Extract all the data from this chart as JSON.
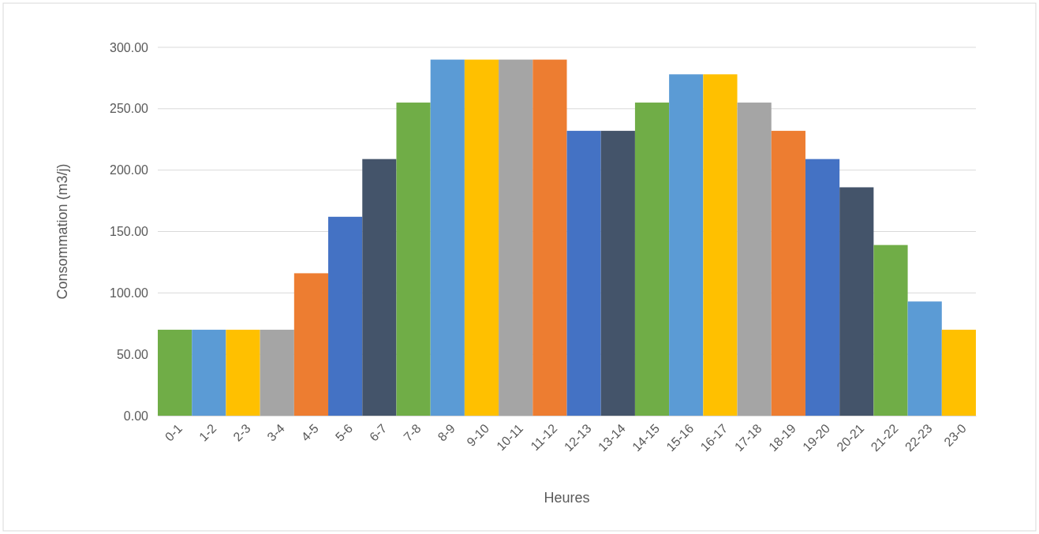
{
  "chart_data": {
    "type": "bar",
    "xlabel": "Heures",
    "ylabel": "Consommation (m3/j)",
    "categories": [
      "0-1",
      "1-2",
      "2-3",
      "3-4",
      "4-5",
      "5-6",
      "6-7",
      "7-8",
      "8-9",
      "9-10",
      "10-11",
      "11-12",
      "12-13",
      "13-14",
      "14-15",
      "15-16",
      "16-17",
      "17-18",
      "18-19",
      "19-20",
      "20-21",
      "21-22",
      "22-23",
      "23-0"
    ],
    "values": [
      70,
      70,
      70,
      70,
      116,
      162,
      209,
      255,
      290,
      290,
      290,
      290,
      232,
      232,
      255,
      278,
      278,
      255,
      232,
      209,
      186,
      139,
      93,
      70
    ],
    "colors": [
      "#70ad47",
      "#5b9bd5",
      "#ffc000",
      "#a5a5a5",
      "#ed7d31",
      "#4472c4",
      "#44546a",
      "#70ad47",
      "#5b9bd5",
      "#ffc000",
      "#a5a5a5",
      "#ed7d31",
      "#4472c4",
      "#44546a",
      "#70ad47",
      "#5b9bd5",
      "#ffc000",
      "#a5a5a5",
      "#ed7d31",
      "#4472c4",
      "#44546a",
      "#70ad47",
      "#5b9bd5",
      "#ffc000"
    ],
    "ylim": [
      0,
      300
    ],
    "yticks": [
      {
        "value": 0,
        "label": "0.00"
      },
      {
        "value": 50,
        "label": "50.00"
      },
      {
        "value": 100,
        "label": "100.00"
      },
      {
        "value": 150,
        "label": "150.00"
      },
      {
        "value": 200,
        "label": "200.00"
      },
      {
        "value": 250,
        "label": "250.00"
      },
      {
        "value": 300,
        "label": "300.00"
      }
    ],
    "grid": "y"
  }
}
